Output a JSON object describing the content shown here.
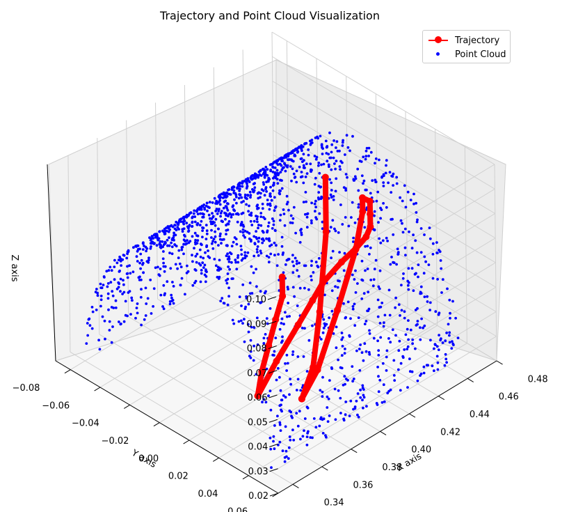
{
  "chart_data": {
    "type": "scatter",
    "title": "Trajectory and Point Cloud Visualization",
    "xlabel": "X axis",
    "ylabel": "Y axis",
    "zlabel": "Z axis",
    "xlim": [
      0.33,
      0.48
    ],
    "ylim": [
      -0.09,
      0.06
    ],
    "zlim": [
      0.02,
      0.1
    ],
    "x_ticks": [
      "0.34",
      "0.36",
      "0.38",
      "0.40",
      "0.42",
      "0.44",
      "0.46",
      "0.48"
    ],
    "y_ticks": [
      "0.06",
      "0.04",
      "0.02",
      "0.00",
      "−0.02",
      "−0.04",
      "−0.06",
      "−0.08"
    ],
    "z_ticks": [
      "0.02",
      "0.03",
      "0.04",
      "0.05",
      "0.06",
      "0.07",
      "0.08",
      "0.09",
      "0.10"
    ],
    "grid": true,
    "legend_position": "top-right",
    "series": [
      {
        "name": "Trajectory",
        "style": "line-with-markers",
        "color": "#ff0000",
        "segments": [
          {
            "x": [
              0.455,
              0.44,
              0.42,
              0.4,
              0.38,
              0.362
            ],
            "y": [
              -0.06,
              -0.045,
              -0.03,
              -0.015,
              0.0,
              0.015
            ],
            "z": [
              0.02,
              0.023,
              0.026,
              0.028,
              0.03,
              0.032
            ]
          },
          {
            "x": [
              0.362,
              0.37,
              0.38,
              0.385,
              0.39,
              0.4,
              0.41,
              0.42,
              0.43,
              0.44,
              0.45,
              0.455
            ],
            "y": [
              0.015,
              0.02,
              0.025,
              0.03,
              0.032,
              0.035,
              0.035,
              0.032,
              0.025,
              0.015,
              0.005,
              -0.005
            ],
            "z": [
              0.032,
              0.045,
              0.058,
              0.068,
              0.074,
              0.08,
              0.082,
              0.082,
              0.08,
              0.078,
              0.076,
              0.072
            ]
          },
          {
            "x": [
              0.455,
              0.45,
              0.44,
              0.42,
              0.4,
              0.385
            ],
            "y": [
              -0.005,
              0.0,
              0.005,
              0.012,
              0.018,
              0.022
            ],
            "z": [
              0.072,
              0.07,
              0.06,
              0.045,
              0.03,
              0.025
            ]
          },
          {
            "x": [
              0.385,
              0.4,
              0.42,
              0.44,
              0.45
            ],
            "y": [
              0.022,
              0.015,
              0.0,
              -0.015,
              -0.025
            ],
            "z": [
              0.025,
              0.03,
              0.04,
              0.06,
              0.075
            ]
          }
        ]
      },
      {
        "name": "Point Cloud",
        "style": "points",
        "color": "#0000ff",
        "shape": "half-cylinder",
        "x_range": [
          0.34,
          0.47
        ],
        "y_range": [
          -0.08,
          0.045
        ],
        "z_range": [
          0.02,
          0.085
        ]
      }
    ]
  }
}
